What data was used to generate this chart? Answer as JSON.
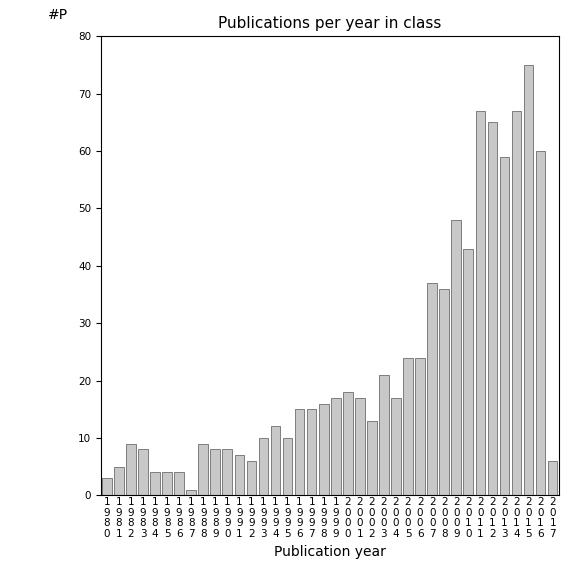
{
  "years": [
    1980,
    1981,
    1982,
    1983,
    1984,
    1985,
    1986,
    1987,
    1988,
    1989,
    1990,
    1991,
    1992,
    1993,
    1994,
    1995,
    1996,
    1997,
    1998,
    1999,
    2000,
    2001,
    2002,
    2003,
    2004,
    2005,
    2006,
    2007,
    2008,
    2009,
    2010,
    2011,
    2012,
    2013,
    2014,
    2015,
    2016,
    2017
  ],
  "values": [
    3,
    5,
    9,
    8,
    4,
    4,
    4,
    1,
    9,
    8,
    8,
    7,
    6,
    10,
    12,
    10,
    15,
    15,
    16,
    17,
    18,
    17,
    13,
    21,
    17,
    24,
    24,
    37,
    36,
    48,
    43,
    67,
    65,
    59,
    67,
    75,
    60,
    6
  ],
  "bar_color": "#c8c8c8",
  "bar_edge_color": "#555555",
  "title": "Publications per year in class",
  "xlabel": "Publication year",
  "ylabel_label": "#P",
  "ylim": [
    0,
    80
  ],
  "yticks": [
    0,
    10,
    20,
    30,
    40,
    50,
    60,
    70,
    80
  ],
  "bg_color": "#ffffff",
  "title_fontsize": 11,
  "axis_label_fontsize": 10,
  "tick_fontsize": 7.5
}
